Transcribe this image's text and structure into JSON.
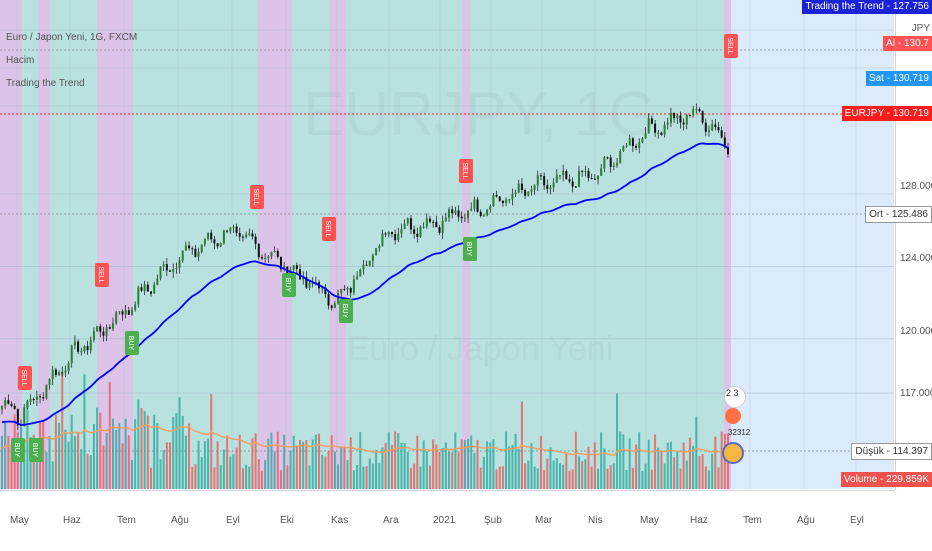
{
  "legend": {
    "title": "Euro / Japon Yeni, 1G, FXCM",
    "volume": "Hacim",
    "indicator": "Trading the Trend"
  },
  "watermark": {
    "symbol": "EURJPY, 1G",
    "name": "Euro / Japon Yeni"
  },
  "price_labels": {
    "indicator": "Trading the Trend",
    "indicator_value": "127.756",
    "jpy": "JPY",
    "buy": "Al",
    "buy_value": "130.7",
    "sell": "Sat",
    "sell_value": "130.719",
    "symbol": "EURJPY",
    "symbol_value": "130.719",
    "mid": "Ort",
    "mid_value": "125.486",
    "low": "Düşük",
    "low_value": "114.397",
    "volume": "Volume",
    "volume_value": "229.859K"
  },
  "emoji_badge": {
    "count": "2 3",
    "value": "32312"
  },
  "colors": {
    "bull": "#26a69a",
    "bear": "#ef5350",
    "trend_line": "#0000ff",
    "volume_ma": "#f0a060",
    "bg_bull": "#b2dfdb",
    "bg_bear": "#e1bee7",
    "bg_right": "#dcebfb",
    "sell_tag": "#ff5252",
    "buy_tag": "#4caf50"
  },
  "chart_data": {
    "type": "candlestick",
    "symbol": "EURJPY",
    "timeframe": "1G",
    "y_ticks": [
      "128.000",
      "124.000",
      "120.000",
      "117.000"
    ],
    "x_ticks": [
      "May",
      "Haz",
      "Tem",
      "Ağu",
      "Eyl",
      "Eki",
      "Kas",
      "Ara",
      "2021",
      "Şub",
      "Mar",
      "Nis",
      "May",
      "Haz",
      "Tem",
      "Ağu",
      "Eyl"
    ],
    "price_path": {
      "x": [
        "May",
        "Haz",
        "Tem",
        "Ağu",
        "Eyl",
        "Eki",
        "Kas",
        "Ara",
        "2021",
        "Şub",
        "Mar",
        "Nis",
        "May",
        "Haz"
      ],
      "close": [
        115.5,
        119.0,
        121.5,
        124.5,
        126.0,
        124.0,
        122.0,
        126.0,
        126.5,
        127.5,
        128.5,
        129.0,
        131.5,
        132.5
      ]
    },
    "signals": [
      {
        "type": "SELL",
        "x": "May"
      },
      {
        "type": "BUY",
        "x": "May"
      },
      {
        "type": "BUY",
        "x": "May"
      },
      {
        "type": "SELL",
        "x": "Haz"
      },
      {
        "type": "BUY",
        "x": "Tem"
      },
      {
        "type": "SELL",
        "x": "Eyl"
      },
      {
        "type": "BUY",
        "x": "Eki"
      },
      {
        "type": "SELL",
        "x": "Kas"
      },
      {
        "type": "BUY",
        "x": "Kas"
      },
      {
        "type": "SELL",
        "x": "2021"
      },
      {
        "type": "BUY",
        "x": "2021"
      },
      {
        "type": "SELL",
        "x": "Haz"
      }
    ]
  }
}
